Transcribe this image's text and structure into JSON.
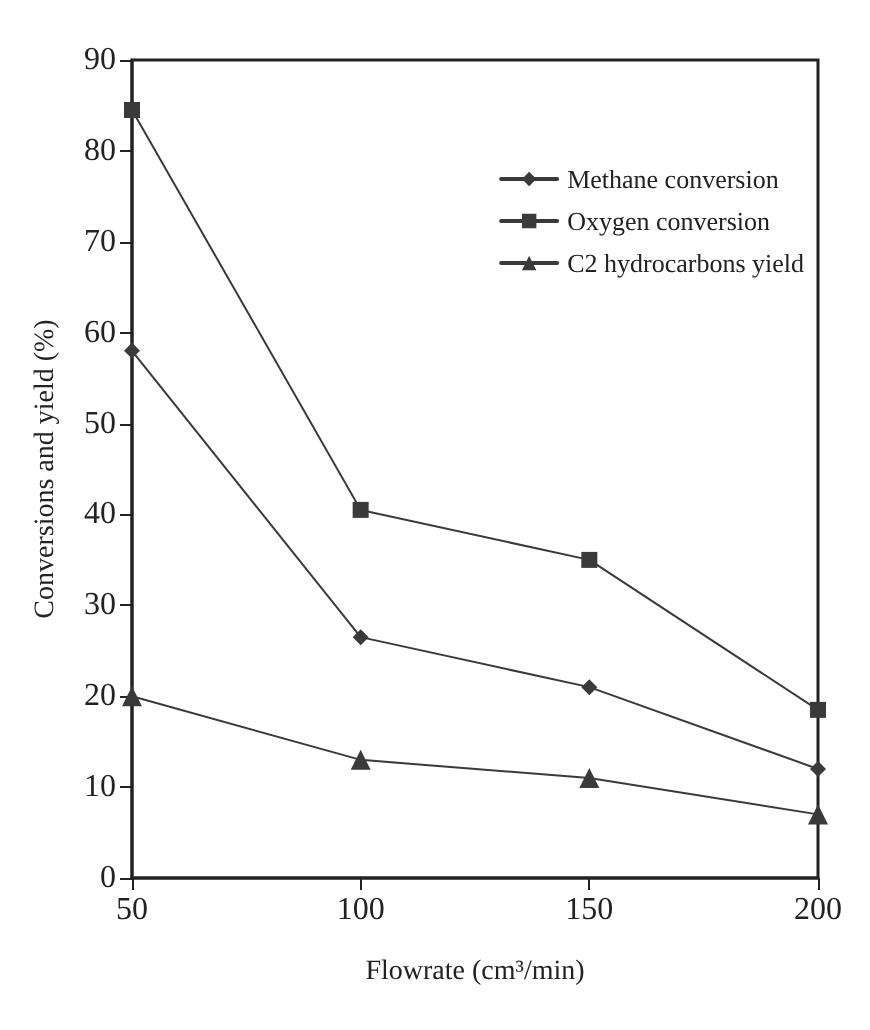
{
  "chart_data": {
    "type": "line",
    "xlabel": "Flowrate (cm³/min)",
    "ylabel": "Conversions and yield (%)",
    "x": [
      50,
      100,
      150,
      200
    ],
    "series": [
      {
        "name": "Methane conversion",
        "color": "#3a3a3a",
        "marker": "diamond",
        "values": [
          58,
          26.5,
          21,
          12
        ]
      },
      {
        "name": "Oxygen conversion",
        "color": "#3a3a3a",
        "marker": "square",
        "values": [
          84.5,
          40.5,
          35,
          18.5
        ]
      },
      {
        "name": "C2 hydrocarbons yield",
        "color": "#3a3a3a",
        "marker": "triangle",
        "values": [
          20,
          13,
          11,
          7
        ]
      }
    ],
    "xlim": [
      50,
      200
    ],
    "xticks": [
      50,
      100,
      150,
      200
    ],
    "ylim": [
      0,
      90
    ],
    "yticks": [
      0,
      10,
      20,
      30,
      40,
      50,
      60,
      70,
      80,
      90
    ],
    "grid": false,
    "legend": "top right",
    "line_style": "solid"
  }
}
